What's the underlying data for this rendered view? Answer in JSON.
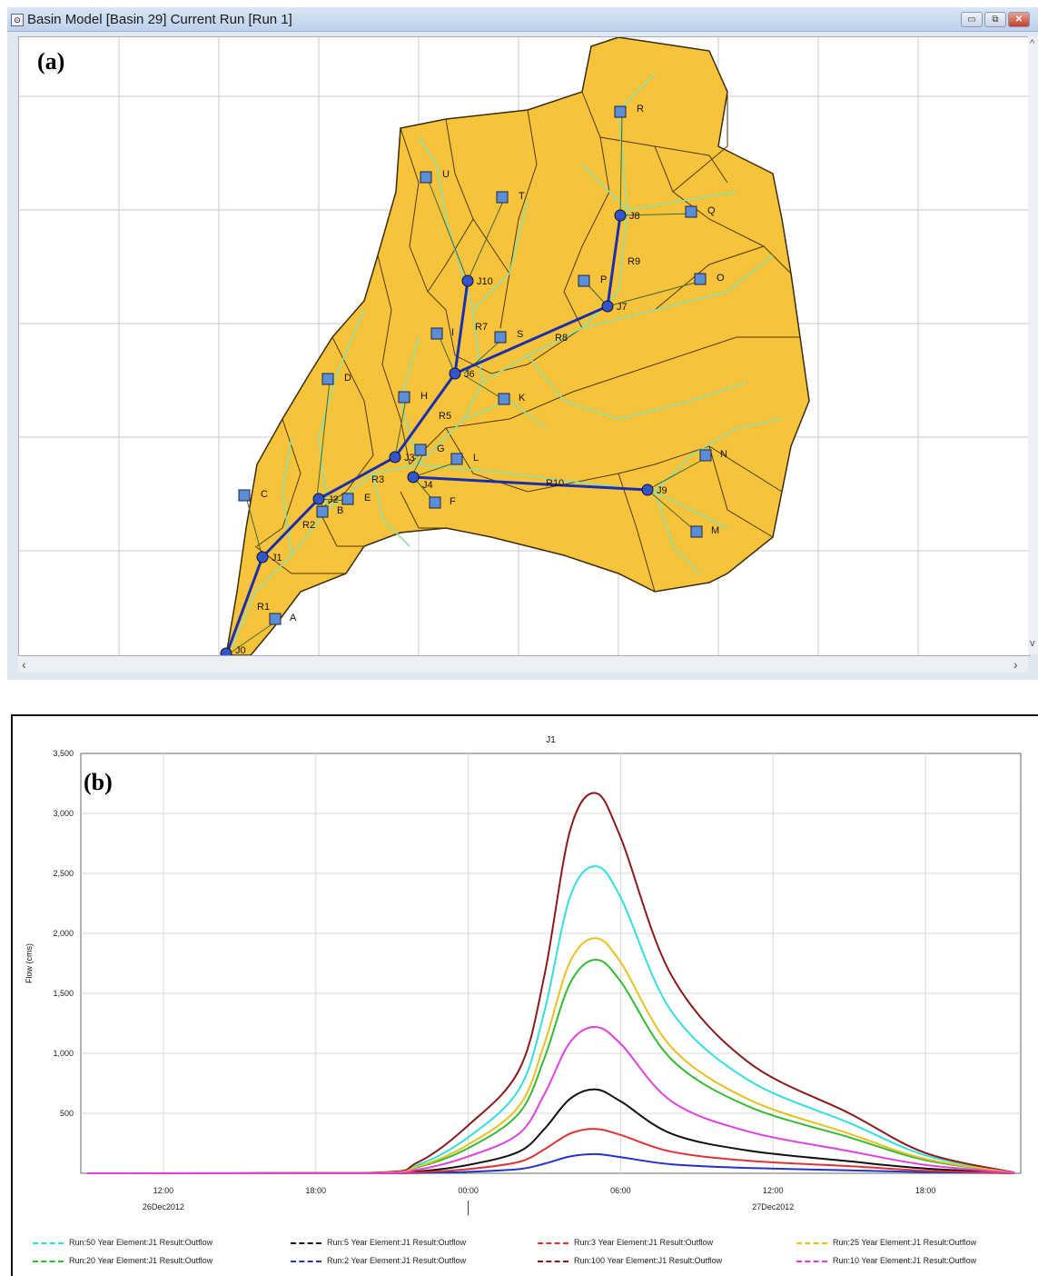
{
  "window": {
    "title": "Basin Model [Basin 29]  Current Run [Run 1]",
    "panel_label": "(a)",
    "controls": {
      "minimize": "▭",
      "restore": "⧉",
      "close": "✕"
    },
    "scroll_left": "‹",
    "scroll_right": "›",
    "scroll_up": "^",
    "scroll_down": "v"
  },
  "basin_map": {
    "colors": {
      "basin_fill": "#f7c33a",
      "subbasin_border": "#4a3a10",
      "streams": "#8fe0a8",
      "reach": "#1a2fb0",
      "link": "#3a6a3a"
    },
    "subbasin_labels": [
      "U",
      "T",
      "R",
      "Q",
      "P",
      "O",
      "I",
      "S",
      "D",
      "H",
      "K",
      "G",
      "L",
      "C",
      "E",
      "B",
      "F",
      "N",
      "M",
      "A"
    ],
    "junction_labels": [
      "J10",
      "J8",
      "J7",
      "J6",
      "J2",
      "J3",
      "J4",
      "J9",
      "J1",
      "J0"
    ],
    "reach_labels": [
      "R7",
      "R9",
      "R8",
      "R5",
      "R3",
      "R10",
      "R2",
      "R1"
    ],
    "icons": {
      "subbasin": "subbasin-icon",
      "junction": "junction-icon"
    }
  },
  "chart_data": {
    "type": "line",
    "title": "J1",
    "panel_label": "(b)",
    "ylabel": "Flow (cms)",
    "xlabel": "",
    "ylim": [
      0,
      3500
    ],
    "yticks": [
      {
        "v": 500,
        "label": "500"
      },
      {
        "v": 1000,
        "label": "1,000"
      },
      {
        "v": 1500,
        "label": "1,500"
      },
      {
        "v": 2000,
        "label": "2,000"
      },
      {
        "v": 2500,
        "label": "2,500"
      },
      {
        "v": 3000,
        "label": "3,000"
      },
      {
        "v": 3500,
        "label": "3,500"
      }
    ],
    "xlim": [
      "26Dec2012 08:45",
      "27Dec2012 21:45"
    ],
    "xticks": [
      {
        "t": "26Dec2012 12:00",
        "label": "12:00"
      },
      {
        "t": "26Dec2012 18:00",
        "label": "18:00"
      },
      {
        "t": "27Dec2012 00:00",
        "label": "00:00"
      },
      {
        "t": "27Dec2012 06:00",
        "label": "06:00"
      },
      {
        "t": "27Dec2012 12:00",
        "label": "12:00"
      },
      {
        "t": "27Dec2012 18:00",
        "label": "18:00"
      }
    ],
    "date_labels": [
      {
        "t": "26Dec2012 12:00",
        "label": "26Dec2012"
      },
      {
        "t": "27Dec2012 12:00",
        "label": "27Dec2012"
      }
    ],
    "grid": true,
    "legend_position": "bottom",
    "x": [
      "26Dec2012 09:00",
      "26Dec2012 20:00",
      "26Dec2012 22:00",
      "27Dec2012 00:00",
      "27Dec2012 02:00",
      "27Dec2012 03:00",
      "27Dec2012 04:00",
      "27Dec2012 05:00",
      "27Dec2012 06:00",
      "27Dec2012 08:00",
      "27Dec2012 11:00",
      "27Dec2012 15:00",
      "27Dec2012 18:00",
      "27Dec2012 21:30"
    ],
    "series": [
      {
        "name": "Run:50 Year Element:J1 Result:Outflow",
        "color": "#33dde0",
        "values": [
          0,
          3,
          70,
          300,
          700,
          1350,
          2300,
          2560,
          2300,
          1350,
          780,
          420,
          150,
          5
        ]
      },
      {
        "name": "Run:20 Year Element:J1 Result:Outflow",
        "color": "#33bb33",
        "values": [
          0,
          2,
          50,
          210,
          500,
          960,
          1580,
          1780,
          1600,
          950,
          560,
          300,
          110,
          4
        ]
      },
      {
        "name": "Run:5 Year Element:J1 Result:Outflow",
        "color": "#111111",
        "values": [
          0,
          1,
          15,
          70,
          180,
          370,
          620,
          700,
          600,
          330,
          190,
          100,
          40,
          2
        ]
      },
      {
        "name": "Run:2 Year Element:J1 Result:Outflow",
        "color": "#2233cc",
        "values": [
          0,
          0,
          3,
          12,
          35,
          80,
          140,
          160,
          135,
          75,
          45,
          25,
          10,
          1
        ]
      },
      {
        "name": "Run:3 Year Element:J1 Result:Outflow",
        "color": "#dd3333",
        "values": [
          0,
          0,
          8,
          35,
          95,
          200,
          330,
          370,
          320,
          180,
          105,
          60,
          22,
          1
        ]
      },
      {
        "name": "Run:100 Year Element:J1 Result:Outflow",
        "color": "#8b1a1a",
        "values": [
          0,
          4,
          90,
          400,
          860,
          1650,
          2850,
          3170,
          2800,
          1650,
          930,
          500,
          170,
          6
        ]
      },
      {
        "name": "Run:25 Year Element:J1 Result:Outflow",
        "color": "#e8c020",
        "values": [
          0,
          2,
          55,
          240,
          560,
          1080,
          1760,
          1960,
          1760,
          1050,
          620,
          330,
          120,
          4
        ]
      },
      {
        "name": "Run:10 Year Element:J1 Result:Outflow",
        "color": "#e040e0",
        "values": [
          0,
          1,
          30,
          140,
          330,
          660,
          1090,
          1220,
          1080,
          600,
          350,
          185,
          70,
          3
        ]
      }
    ]
  }
}
